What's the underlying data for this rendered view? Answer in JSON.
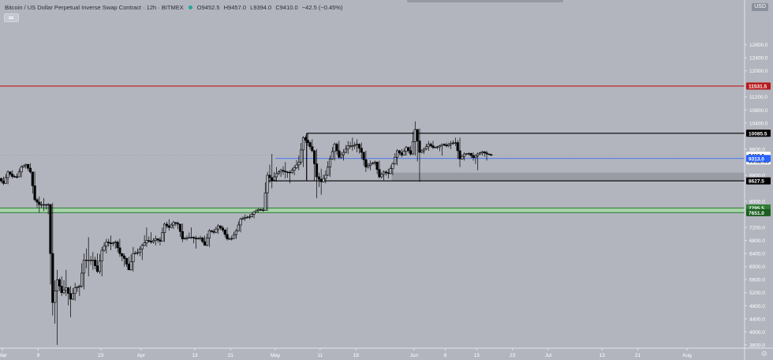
{
  "header": {
    "title": "Bitcoin / US Dollar Perpetual Inverse Swap Contract · 12h · BITMEX",
    "open": "O9452.5",
    "high": "H9457.0",
    "low": "L9394.0",
    "close": "C9410.0",
    "change": "−42.5 (−0.45%)",
    "status_color": "#26a69a"
  },
  "currency_label": "USD",
  "settings_icon": "gear-icon",
  "colors": {
    "background": "#b2b5be",
    "candle": "#000000",
    "resistance_line": "#c62828",
    "support_zone": "#a5d6a7",
    "blue_line": "#2962ff"
  },
  "chart_data": {
    "type": "candlestick",
    "ylim": [
      3500,
      14000
    ],
    "xlim": [
      "2020-03-01",
      "2020-08-10"
    ],
    "y_ticks": [
      3600,
      4000,
      4400,
      4800,
      5200,
      5600,
      6000,
      6400,
      6800,
      7200,
      8000,
      8800,
      9600,
      10400,
      10800,
      11200,
      12000,
      12400,
      12800
    ],
    "x_ticks": [
      {
        "label": "Mar",
        "date": "2020-03-01"
      },
      {
        "label": "9",
        "date": "2020-03-09"
      },
      {
        "label": "23",
        "date": "2020-03-23"
      },
      {
        "label": "Apr",
        "date": "2020-04-01"
      },
      {
        "label": "13",
        "date": "2020-04-13"
      },
      {
        "label": "21",
        "date": "2020-04-21"
      },
      {
        "label": "May",
        "date": "2020-05-01"
      },
      {
        "label": "11",
        "date": "2020-05-11"
      },
      {
        "label": "19",
        "date": "2020-05-19"
      },
      {
        "label": "Jun",
        "date": "2020-06-01"
      },
      {
        "label": "8",
        "date": "2020-06-08"
      },
      {
        "label": "15",
        "date": "2020-06-15"
      },
      {
        "label": "23",
        "date": "2020-06-23"
      },
      {
        "label": "Jul",
        "date": "2020-07-01"
      },
      {
        "label": "13",
        "date": "2020-07-13"
      },
      {
        "label": "21",
        "date": "2020-07-21"
      },
      {
        "label": "Aug",
        "date": "2020-08-01"
      }
    ],
    "price_labels": [
      {
        "text": "11531.5",
        "value": 11531.5,
        "color": "#b71c1c"
      },
      {
        "text": "10085.5",
        "value": 10085.5,
        "color": "#000000"
      },
      {
        "text": "9410.0",
        "value": 9410.0,
        "color": "#ffffff",
        "text_color": "#131722"
      },
      {
        "text": "06:32:33",
        "value": 9240,
        "color": "#ffffff",
        "text_color": "#131722"
      },
      {
        "text": "9313.0",
        "value": 9313.0,
        "color": "#2962ff"
      },
      {
        "text": "8627.5",
        "value": 8627.5,
        "color": "#000000"
      },
      {
        "text": "7795.5",
        "value": 7795.5,
        "color": "#2e7d32"
      },
      {
        "text": "7651.0",
        "value": 7651.0,
        "color": "#1b5e20"
      }
    ],
    "hlines": [
      {
        "name": "resistance",
        "value": 11531.5,
        "color": "#c62828"
      },
      {
        "name": "last-price",
        "value": 9410.0,
        "color": "#9598a1",
        "dashed": true
      },
      {
        "name": "blue-level",
        "value": 9313.0,
        "color": "#2962ff",
        "start": "2020-05-01"
      }
    ],
    "zones": [
      {
        "name": "support-zone",
        "from": 7651.0,
        "to": 7795.5,
        "color": "#a5d6a7",
        "border": "#2e7d32"
      },
      {
        "name": "gray-zone",
        "from": 8627.5,
        "to": 8880,
        "color": "#9598a1",
        "start": "2020-05-27"
      }
    ],
    "range_box": {
      "start": "2020-05-08",
      "top": 10085.5,
      "bottom": 8627.5
    },
    "candles": [
      {
        "d": "2020-03-01",
        "o": 8700,
        "h": 8760,
        "l": 8500,
        "c": 8550
      },
      {
        "d": "2020-03-02",
        "o": 8550,
        "h": 8950,
        "l": 8520,
        "c": 8900
      },
      {
        "d": "2020-03-03",
        "o": 8900,
        "h": 8950,
        "l": 8700,
        "c": 8760
      },
      {
        "d": "2020-03-04",
        "o": 8760,
        "h": 8850,
        "l": 8700,
        "c": 8750
      },
      {
        "d": "2020-03-05",
        "o": 8750,
        "h": 9100,
        "l": 8730,
        "c": 9050
      },
      {
        "d": "2020-03-06",
        "o": 9050,
        "h": 9160,
        "l": 9000,
        "c": 9130
      },
      {
        "d": "2020-03-07",
        "o": 9130,
        "h": 9170,
        "l": 8850,
        "c": 8900
      },
      {
        "d": "2020-03-08",
        "o": 8900,
        "h": 8910,
        "l": 8000,
        "c": 8050
      },
      {
        "d": "2020-03-09",
        "o": 8050,
        "h": 8150,
        "l": 7650,
        "c": 7900
      },
      {
        "d": "2020-03-10",
        "o": 7900,
        "h": 8100,
        "l": 7700,
        "c": 7900
      },
      {
        "d": "2020-03-11",
        "o": 7900,
        "h": 7950,
        "l": 7600,
        "c": 7900
      },
      {
        "d": "2020-03-12",
        "o": 7900,
        "h": 7950,
        "l": 4500,
        "c": 4900
      },
      {
        "d": "2020-03-13",
        "o": 4900,
        "h": 5900,
        "l": 3600,
        "c": 5600
      },
      {
        "d": "2020-03-14",
        "o": 5600,
        "h": 5700,
        "l": 5100,
        "c": 5200
      },
      {
        "d": "2020-03-15",
        "o": 5200,
        "h": 5900,
        "l": 5100,
        "c": 5350
      },
      {
        "d": "2020-03-16",
        "o": 5350,
        "h": 5400,
        "l": 4450,
        "c": 5000
      },
      {
        "d": "2020-03-17",
        "o": 5000,
        "h": 5500,
        "l": 4950,
        "c": 5350
      },
      {
        "d": "2020-03-18",
        "o": 5350,
        "h": 5450,
        "l": 5100,
        "c": 5400
      },
      {
        "d": "2020-03-19",
        "o": 5400,
        "h": 6400,
        "l": 5300,
        "c": 6200
      },
      {
        "d": "2020-03-20",
        "o": 6200,
        "h": 6900,
        "l": 5700,
        "c": 6200
      },
      {
        "d": "2020-03-21",
        "o": 6200,
        "h": 6450,
        "l": 5900,
        "c": 6200
      },
      {
        "d": "2020-03-22",
        "o": 6200,
        "h": 6400,
        "l": 5800,
        "c": 5850
      },
      {
        "d": "2020-03-23",
        "o": 5850,
        "h": 6600,
        "l": 5700,
        "c": 6500
      },
      {
        "d": "2020-03-24",
        "o": 6500,
        "h": 6850,
        "l": 6400,
        "c": 6750
      },
      {
        "d": "2020-03-25",
        "o": 6750,
        "h": 6950,
        "l": 6500,
        "c": 6700
      },
      {
        "d": "2020-03-26",
        "o": 6700,
        "h": 6800,
        "l": 6550,
        "c": 6750
      },
      {
        "d": "2020-03-27",
        "o": 6750,
        "h": 6850,
        "l": 6300,
        "c": 6400
      },
      {
        "d": "2020-03-28",
        "o": 6400,
        "h": 6400,
        "l": 6000,
        "c": 6250
      },
      {
        "d": "2020-03-29",
        "o": 6250,
        "h": 6300,
        "l": 5900,
        "c": 5900
      },
      {
        "d": "2020-03-30",
        "o": 5900,
        "h": 6600,
        "l": 5850,
        "c": 6400
      },
      {
        "d": "2020-03-31",
        "o": 6400,
        "h": 6550,
        "l": 6350,
        "c": 6430
      },
      {
        "d": "2020-04-01",
        "o": 6430,
        "h": 6700,
        "l": 6200,
        "c": 6650
      },
      {
        "d": "2020-04-02",
        "o": 6650,
        "h": 7200,
        "l": 6600,
        "c": 6800
      },
      {
        "d": "2020-04-03",
        "o": 6800,
        "h": 7050,
        "l": 6700,
        "c": 6750
      },
      {
        "d": "2020-04-04",
        "o": 6750,
        "h": 6950,
        "l": 6650,
        "c": 6850
      },
      {
        "d": "2020-04-05",
        "o": 6850,
        "h": 6900,
        "l": 6650,
        "c": 6780
      },
      {
        "d": "2020-04-06",
        "o": 6780,
        "h": 7350,
        "l": 6750,
        "c": 7300
      },
      {
        "d": "2020-04-07",
        "o": 7300,
        "h": 7450,
        "l": 7100,
        "c": 7200
      },
      {
        "d": "2020-04-08",
        "o": 7200,
        "h": 7400,
        "l": 7150,
        "c": 7350
      },
      {
        "d": "2020-04-09",
        "o": 7350,
        "h": 7380,
        "l": 7150,
        "c": 7300
      },
      {
        "d": "2020-04-10",
        "o": 7300,
        "h": 7320,
        "l": 6750,
        "c": 6850
      },
      {
        "d": "2020-04-11",
        "o": 6850,
        "h": 6950,
        "l": 6800,
        "c": 6880
      },
      {
        "d": "2020-04-12",
        "o": 6880,
        "h": 7200,
        "l": 6850,
        "c": 6900
      },
      {
        "d": "2020-04-13",
        "o": 6900,
        "h": 6950,
        "l": 6550,
        "c": 6850
      },
      {
        "d": "2020-04-14",
        "o": 6850,
        "h": 6950,
        "l": 6800,
        "c": 6880
      },
      {
        "d": "2020-04-15",
        "o": 6880,
        "h": 6950,
        "l": 6650,
        "c": 6650
      },
      {
        "d": "2020-04-16",
        "o": 6650,
        "h": 7150,
        "l": 6600,
        "c": 7100
      },
      {
        "d": "2020-04-17",
        "o": 7100,
        "h": 7150,
        "l": 7000,
        "c": 7050
      },
      {
        "d": "2020-04-18",
        "o": 7050,
        "h": 7300,
        "l": 7000,
        "c": 7250
      },
      {
        "d": "2020-04-19",
        "o": 7250,
        "h": 7250,
        "l": 7050,
        "c": 7120
      },
      {
        "d": "2020-04-20",
        "o": 7120,
        "h": 7200,
        "l": 6800,
        "c": 6850
      },
      {
        "d": "2020-04-21",
        "o": 6850,
        "h": 6950,
        "l": 6800,
        "c": 6860
      },
      {
        "d": "2020-04-22",
        "o": 6860,
        "h": 7150,
        "l": 6850,
        "c": 7100
      },
      {
        "d": "2020-04-23",
        "o": 7100,
        "h": 7500,
        "l": 7050,
        "c": 7450
      },
      {
        "d": "2020-04-24",
        "o": 7450,
        "h": 7600,
        "l": 7400,
        "c": 7500
      },
      {
        "d": "2020-04-25",
        "o": 7500,
        "h": 7600,
        "l": 7450,
        "c": 7530
      },
      {
        "d": "2020-04-26",
        "o": 7530,
        "h": 7700,
        "l": 7480,
        "c": 7680
      },
      {
        "d": "2020-04-27",
        "o": 7680,
        "h": 7800,
        "l": 7650,
        "c": 7750
      },
      {
        "d": "2020-04-28",
        "o": 7750,
        "h": 7800,
        "l": 7680,
        "c": 7720
      },
      {
        "d": "2020-04-29",
        "o": 7720,
        "h": 8900,
        "l": 7700,
        "c": 8800
      },
      {
        "d": "2020-04-30",
        "o": 8800,
        "h": 9450,
        "l": 8400,
        "c": 8650
      },
      {
        "d": "2020-05-01",
        "o": 8650,
        "h": 9050,
        "l": 8600,
        "c": 8850
      },
      {
        "d": "2020-05-02",
        "o": 8850,
        "h": 9000,
        "l": 8750,
        "c": 8950
      },
      {
        "d": "2020-05-03",
        "o": 8950,
        "h": 9200,
        "l": 8700,
        "c": 8900
      },
      {
        "d": "2020-05-04",
        "o": 8900,
        "h": 8950,
        "l": 8550,
        "c": 8880
      },
      {
        "d": "2020-05-05",
        "o": 8880,
        "h": 9100,
        "l": 8800,
        "c": 9030
      },
      {
        "d": "2020-05-06",
        "o": 9030,
        "h": 9400,
        "l": 8950,
        "c": 9200
      },
      {
        "d": "2020-05-07",
        "o": 9200,
        "h": 10000,
        "l": 9050,
        "c": 9950
      },
      {
        "d": "2020-05-08",
        "o": 9950,
        "h": 10080,
        "l": 9700,
        "c": 9800
      },
      {
        "d": "2020-05-09",
        "o": 9800,
        "h": 9900,
        "l": 9500,
        "c": 9550
      },
      {
        "d": "2020-05-10",
        "o": 9550,
        "h": 9600,
        "l": 8100,
        "c": 8750
      },
      {
        "d": "2020-05-11",
        "o": 8750,
        "h": 9000,
        "l": 8200,
        "c": 8600
      },
      {
        "d": "2020-05-12",
        "o": 8600,
        "h": 8950,
        "l": 8550,
        "c": 8800
      },
      {
        "d": "2020-05-13",
        "o": 8800,
        "h": 9400,
        "l": 8750,
        "c": 9300
      },
      {
        "d": "2020-05-14",
        "o": 9300,
        "h": 9800,
        "l": 9250,
        "c": 9750
      },
      {
        "d": "2020-05-15",
        "o": 9750,
        "h": 9850,
        "l": 9300,
        "c": 9350
      },
      {
        "d": "2020-05-16",
        "o": 9350,
        "h": 9600,
        "l": 9250,
        "c": 9500
      },
      {
        "d": "2020-05-17",
        "o": 9500,
        "h": 9850,
        "l": 9450,
        "c": 9700
      },
      {
        "d": "2020-05-18",
        "o": 9700,
        "h": 9950,
        "l": 9550,
        "c": 9700
      },
      {
        "d": "2020-05-19",
        "o": 9700,
        "h": 9900,
        "l": 9500,
        "c": 9750
      },
      {
        "d": "2020-05-20",
        "o": 9750,
        "h": 9800,
        "l": 9300,
        "c": 9500
      },
      {
        "d": "2020-05-21",
        "o": 9500,
        "h": 9550,
        "l": 8900,
        "c": 9050
      },
      {
        "d": "2020-05-22",
        "o": 9050,
        "h": 9250,
        "l": 8950,
        "c": 9150
      },
      {
        "d": "2020-05-23",
        "o": 9150,
        "h": 9250,
        "l": 9100,
        "c": 9200
      },
      {
        "d": "2020-05-24",
        "o": 9200,
        "h": 9250,
        "l": 8700,
        "c": 8750
      },
      {
        "d": "2020-05-25",
        "o": 8750,
        "h": 8950,
        "l": 8650,
        "c": 8900
      },
      {
        "d": "2020-05-26",
        "o": 8900,
        "h": 9000,
        "l": 8700,
        "c": 8850
      },
      {
        "d": "2020-05-27",
        "o": 8850,
        "h": 9200,
        "l": 8800,
        "c": 9150
      },
      {
        "d": "2020-05-28",
        "o": 9150,
        "h": 9600,
        "l": 9100,
        "c": 9550
      },
      {
        "d": "2020-05-29",
        "o": 9550,
        "h": 9600,
        "l": 9350,
        "c": 9420
      },
      {
        "d": "2020-05-30",
        "o": 9420,
        "h": 9700,
        "l": 9400,
        "c": 9650
      },
      {
        "d": "2020-05-31",
        "o": 9650,
        "h": 9700,
        "l": 9400,
        "c": 9450
      },
      {
        "d": "2020-06-01",
        "o": 9450,
        "h": 10450,
        "l": 9400,
        "c": 10200
      },
      {
        "d": "2020-06-02",
        "o": 10200,
        "h": 10230,
        "l": 8600,
        "c": 9500
      },
      {
        "d": "2020-06-03",
        "o": 9500,
        "h": 9650,
        "l": 9450,
        "c": 9600
      },
      {
        "d": "2020-06-04",
        "o": 9600,
        "h": 9850,
        "l": 9550,
        "c": 9750
      },
      {
        "d": "2020-06-05",
        "o": 9750,
        "h": 9850,
        "l": 9600,
        "c": 9650
      },
      {
        "d": "2020-06-06",
        "o": 9650,
        "h": 9700,
        "l": 9600,
        "c": 9670
      },
      {
        "d": "2020-06-07",
        "o": 9670,
        "h": 9750,
        "l": 9400,
        "c": 9750
      },
      {
        "d": "2020-06-08",
        "o": 9750,
        "h": 9800,
        "l": 9650,
        "c": 9700
      },
      {
        "d": "2020-06-09",
        "o": 9700,
        "h": 9850,
        "l": 9600,
        "c": 9780
      },
      {
        "d": "2020-06-10",
        "o": 9780,
        "h": 9950,
        "l": 9700,
        "c": 9800
      },
      {
        "d": "2020-06-11",
        "o": 9800,
        "h": 9950,
        "l": 9050,
        "c": 9300
      },
      {
        "d": "2020-06-12",
        "o": 9300,
        "h": 9500,
        "l": 9250,
        "c": 9450
      },
      {
        "d": "2020-06-13",
        "o": 9450,
        "h": 9500,
        "l": 9400,
        "c": 9470
      },
      {
        "d": "2020-06-14",
        "o": 9470,
        "h": 9500,
        "l": 9250,
        "c": 9340
      },
      {
        "d": "2020-06-15",
        "o": 9340,
        "h": 9500,
        "l": 8950,
        "c": 9450
      },
      {
        "d": "2020-06-16",
        "o": 9450,
        "h": 9550,
        "l": 9400,
        "c": 9520
      },
      {
        "d": "2020-06-17",
        "o": 9520,
        "h": 9550,
        "l": 9250,
        "c": 9452.5
      },
      {
        "d": "2020-06-18",
        "o": 9452.5,
        "h": 9457,
        "l": 9394,
        "c": 9410
      }
    ]
  }
}
